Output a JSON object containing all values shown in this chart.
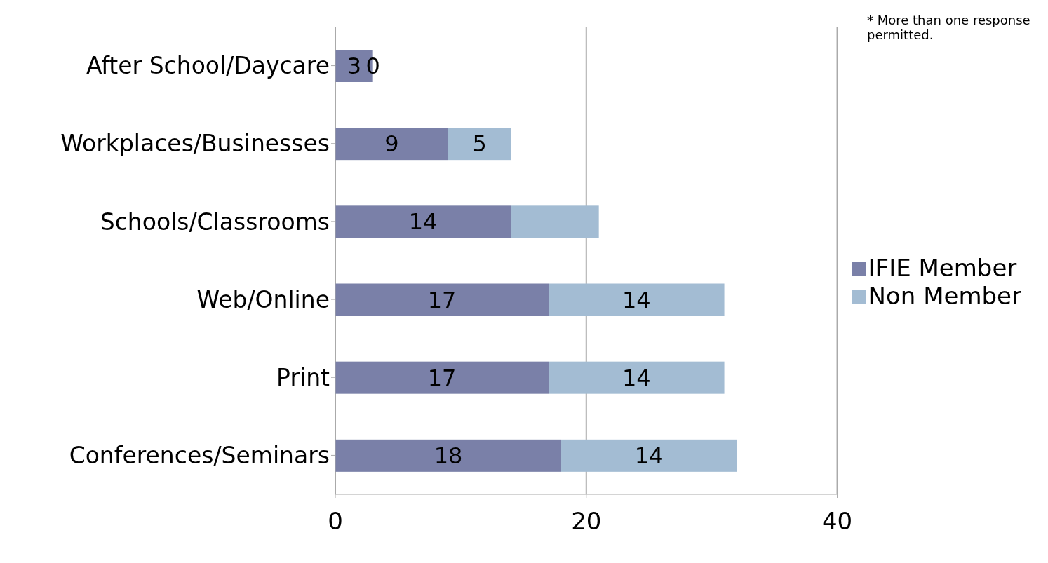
{
  "chart_data": {
    "type": "bar",
    "orientation": "horizontal",
    "stacked": true,
    "categories": [
      "After School/Daycare",
      "Workplaces/Businesses",
      "Schools/Classrooms",
      "Web/Online",
      "Print",
      "Conferences/Seminars"
    ],
    "series": [
      {
        "name": "IFIE Member",
        "color": "#7a80a8",
        "values": [
          3,
          9,
          14,
          17,
          17,
          18
        ],
        "value_labels": [
          "3",
          "9",
          "14",
          "17",
          "17",
          "18"
        ]
      },
      {
        "name": "Non Member",
        "color": "#a3bcd3",
        "values": [
          0,
          5,
          7,
          14,
          14,
          14
        ],
        "value_labels": [
          "0",
          "5",
          null,
          "14",
          "14",
          "14"
        ]
      }
    ],
    "xlim": [
      0,
      40
    ],
    "xticks": [
      0,
      20,
      40
    ],
    "grid": "x",
    "legend": "right",
    "annotations": [
      "* More than one response permitted."
    ]
  }
}
